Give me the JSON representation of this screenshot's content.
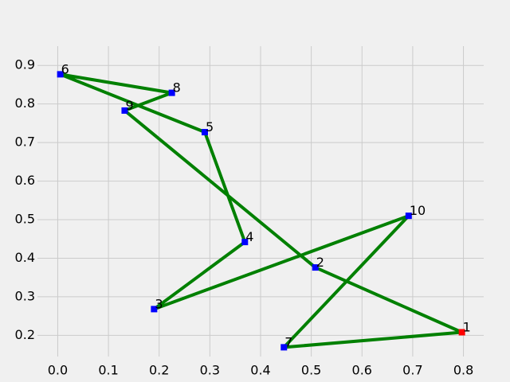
{
  "chart_data": {
    "type": "line",
    "title": "",
    "xlabel": "",
    "ylabel": "",
    "xlim": [
      -0.04,
      0.84
    ],
    "ylim": [
      0.145,
      0.95
    ],
    "grid": true,
    "x_ticks": [
      "0.0",
      "0.1",
      "0.2",
      "0.3",
      "0.4",
      "0.5",
      "0.6",
      "0.7",
      "0.8"
    ],
    "y_ticks": [
      "0.2",
      "0.3",
      "0.4",
      "0.5",
      "0.6",
      "0.7",
      "0.8",
      "0.9"
    ],
    "line_color": "#008000",
    "marker_color": "#0000ff",
    "start_marker_color": "#ff0000",
    "points": [
      {
        "label": "1",
        "x": 0.797,
        "y": 0.208
      },
      {
        "label": "2",
        "x": 0.508,
        "y": 0.376
      },
      {
        "label": "9",
        "x": 0.132,
        "y": 0.783
      },
      {
        "label": "8",
        "x": 0.225,
        "y": 0.829
      },
      {
        "label": "6",
        "x": 0.005,
        "y": 0.877
      },
      {
        "label": "5",
        "x": 0.29,
        "y": 0.727
      },
      {
        "label": "4",
        "x": 0.369,
        "y": 0.442
      },
      {
        "label": "3",
        "x": 0.19,
        "y": 0.268
      },
      {
        "label": "10",
        "x": 0.692,
        "y": 0.51
      },
      {
        "label": "7",
        "x": 0.446,
        "y": 0.169
      },
      {
        "label": "1",
        "x": 0.797,
        "y": 0.208
      }
    ]
  }
}
